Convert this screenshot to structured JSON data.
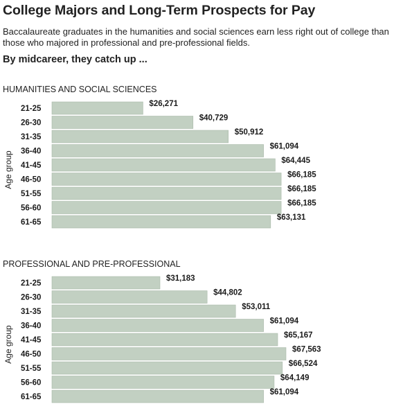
{
  "header": {
    "title": "College Majors and Long-Term Prospects for Pay",
    "subtitle": "Baccalaureate graduates in the humanities and social sciences earn less right out of college than those who majored in professional and pre-professional fields.",
    "lede": "By midcareer, they catch up ..."
  },
  "colors": {
    "bar": "#c2d0c2",
    "bar_stroke": "#a9b9a9",
    "text": "#1a1a1a"
  },
  "chart_data": [
    {
      "type": "bar",
      "orientation": "horizontal",
      "title": "HUMANITIES AND SOCIAL SCIENCES",
      "ylabel": "Age group",
      "categories": [
        "21-25",
        "26-30",
        "31-35",
        "36-40",
        "41-45",
        "46-50",
        "51-55",
        "56-60",
        "61-65"
      ],
      "values": [
        26271,
        40729,
        50912,
        61094,
        64445,
        66185,
        66185,
        66185,
        63131
      ],
      "data_labels": [
        "$26,271",
        "$40,729",
        "$50,912",
        "$61,094",
        "$64,445",
        "$66,185",
        "$66,185",
        "$66,185",
        "$63,131"
      ],
      "xlim": [
        0,
        67563
      ],
      "grid": false,
      "legend": "none"
    },
    {
      "type": "bar",
      "orientation": "horizontal",
      "title": "PROFESSIONAL AND PRE-PROFESSIONAL",
      "ylabel": "Age group",
      "categories": [
        "21-25",
        "26-30",
        "31-35",
        "36-40",
        "41-45",
        "46-50",
        "51-55",
        "56-60",
        "61-65"
      ],
      "values": [
        31183,
        44802,
        53011,
        61094,
        65167,
        67563,
        66524,
        64149,
        61094
      ],
      "data_labels": [
        "$31,183",
        "$44,802",
        "$53,011",
        "$61,094",
        "$65,167",
        "$67,563",
        "$66,524",
        "$64,149",
        "$61,094"
      ],
      "xlim": [
        0,
        67563
      ],
      "grid": false,
      "legend": "none"
    }
  ]
}
